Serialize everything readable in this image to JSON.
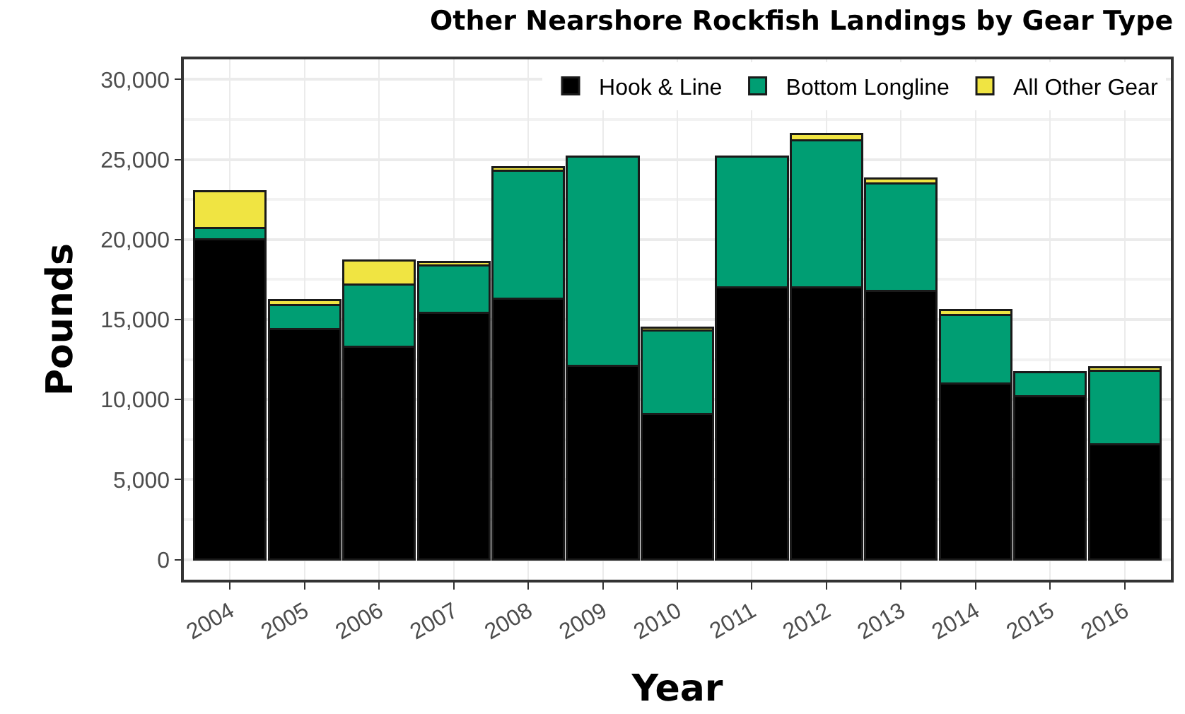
{
  "chart_data": {
    "type": "bar",
    "title": "Other Nearshore Rockfish Landings by Gear Type",
    "xlabel": "Year",
    "ylabel": "Pounds",
    "categories": [
      "2004",
      "2005",
      "2006",
      "2007",
      "2008",
      "2009",
      "2010",
      "2011",
      "2012",
      "2013",
      "2014",
      "2015",
      "2016"
    ],
    "stacked": true,
    "series": [
      {
        "name": "Hook & Line",
        "color": "#000000",
        "values": [
          20000,
          14400,
          13300,
          15400,
          16300,
          12100,
          9100,
          17000,
          17000,
          16800,
          11000,
          10200,
          7200
        ]
      },
      {
        "name": "Bottom Longline",
        "color": "#009e73",
        "values": [
          700,
          1500,
          3900,
          3000,
          8000,
          13100,
          5200,
          8200,
          9200,
          6700,
          4300,
          1500,
          4600
        ]
      },
      {
        "name": "All Other Gear",
        "color": "#f0e442",
        "values": [
          2300,
          300,
          1500,
          200,
          200,
          null,
          200,
          null,
          400,
          300,
          300,
          null,
          200
        ]
      }
    ],
    "ylim": [
      -1250,
      31250
    ],
    "yticks": [
      {
        "value": 0,
        "label": "0"
      },
      {
        "value": 5000,
        "label": "5,000"
      },
      {
        "value": 10000,
        "label": "10,000"
      },
      {
        "value": 15000,
        "label": "15,000"
      },
      {
        "value": 20000,
        "label": "20,000"
      },
      {
        "value": 25000,
        "label": "25,000"
      },
      {
        "value": 30000,
        "label": "30,000"
      }
    ],
    "grid": true,
    "legend": "top right"
  }
}
